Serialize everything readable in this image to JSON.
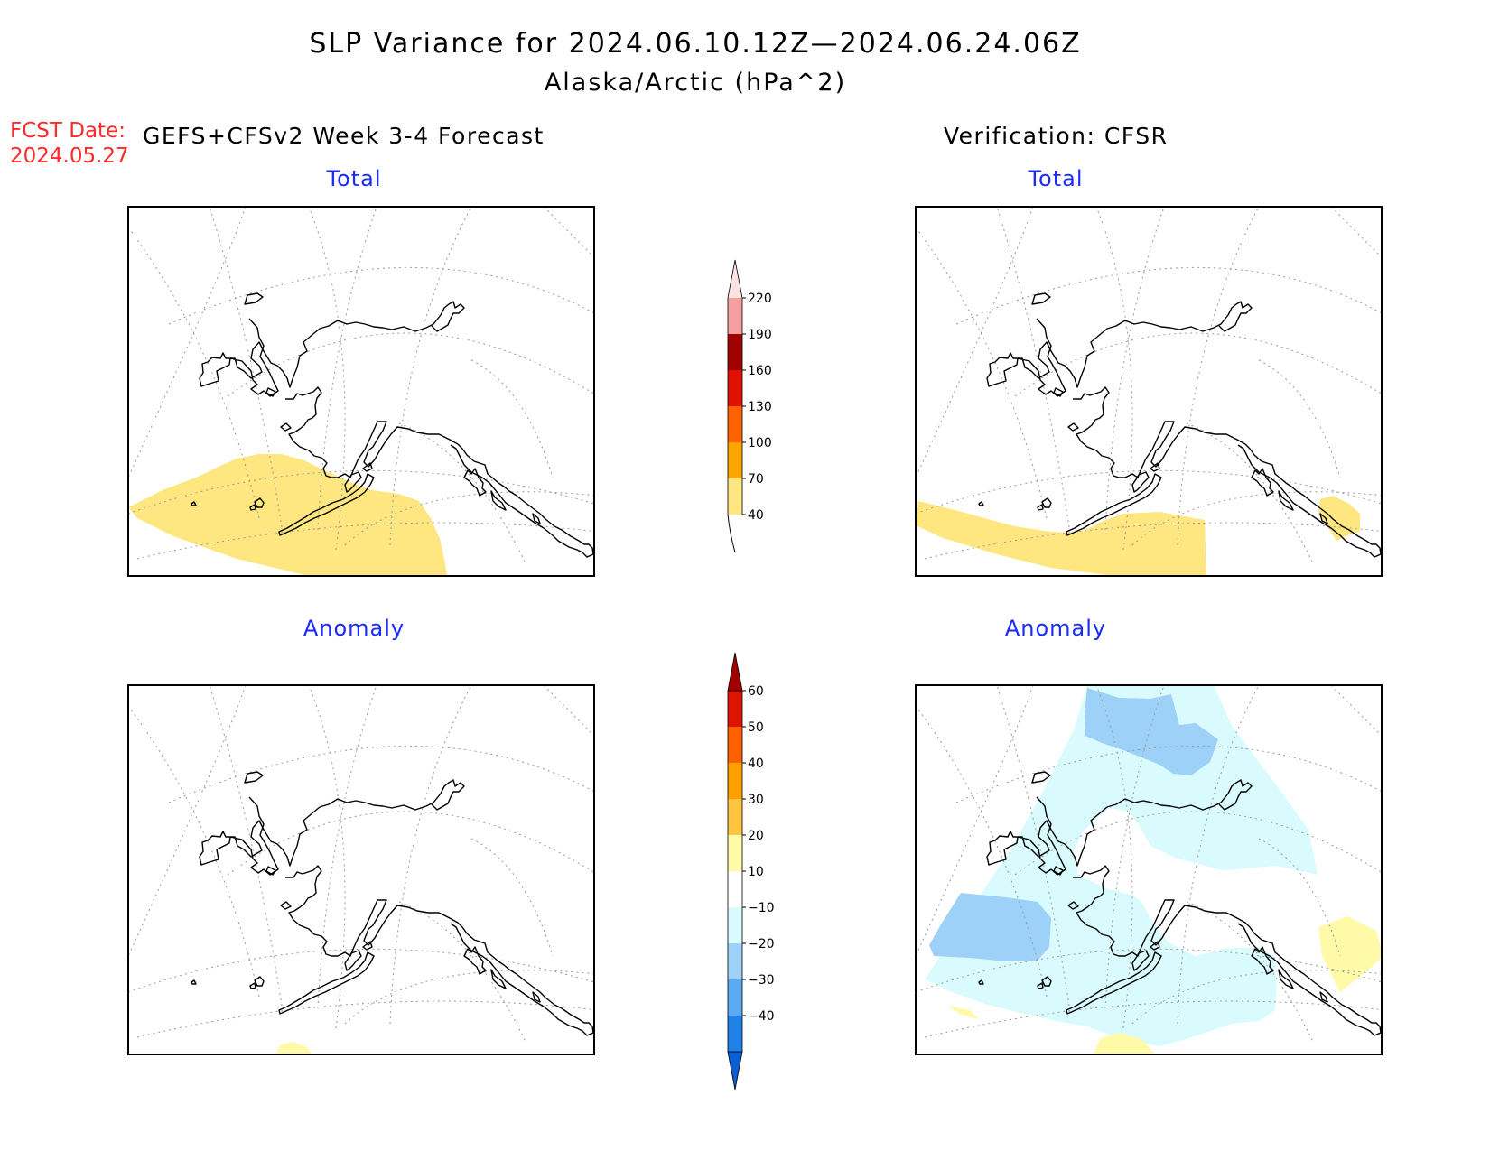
{
  "title": "SLP Variance for 2024.06.10.12Z—2024.06.24.06Z",
  "subtitle": "Alaska/Arctic (hPa^2)",
  "fcst_label": "FCST Date:",
  "fcst_date": "2024.05.27",
  "forecast_header": "GEFS+CFSv2 Week 3-4 Forecast",
  "verification_header": "Verification: CFSR",
  "panels": {
    "forecast_total": {
      "title": "Total"
    },
    "verification_total": {
      "title": "Total"
    },
    "forecast_anomaly": {
      "title": "Anomaly"
    },
    "verification_anomaly": {
      "title": "Anomaly"
    }
  },
  "colorbars": {
    "total": {
      "colors": [
        "#fee680",
        "#ffa400",
        "#ff6300",
        "#e01100",
        "#a00000",
        "#f4a0a0",
        "#fbe3e3"
      ],
      "labels": [
        "40",
        "70",
        "100",
        "130",
        "160",
        "190",
        "220"
      ]
    },
    "anomaly": {
      "colors": [
        "#0a5fd5",
        "#1e82e8",
        "#5cabf2",
        "#9ed1f8",
        "#d9fbfd",
        "#ffffff",
        "#fffaa8",
        "#ffc440",
        "#ffa000",
        "#ff6000",
        "#dc1400",
        "#a00000"
      ],
      "labels": [
        "-40",
        "-30",
        "-20",
        "-10",
        "10",
        "20",
        "30",
        "40",
        "50",
        "60"
      ]
    }
  },
  "legend": {
    "positive_total": "#fee680",
    "anomaly_light_blue": "#d9fbfd",
    "anomaly_blue": "#9ed1f8",
    "anomaly_yellow": "#fffaa8"
  }
}
